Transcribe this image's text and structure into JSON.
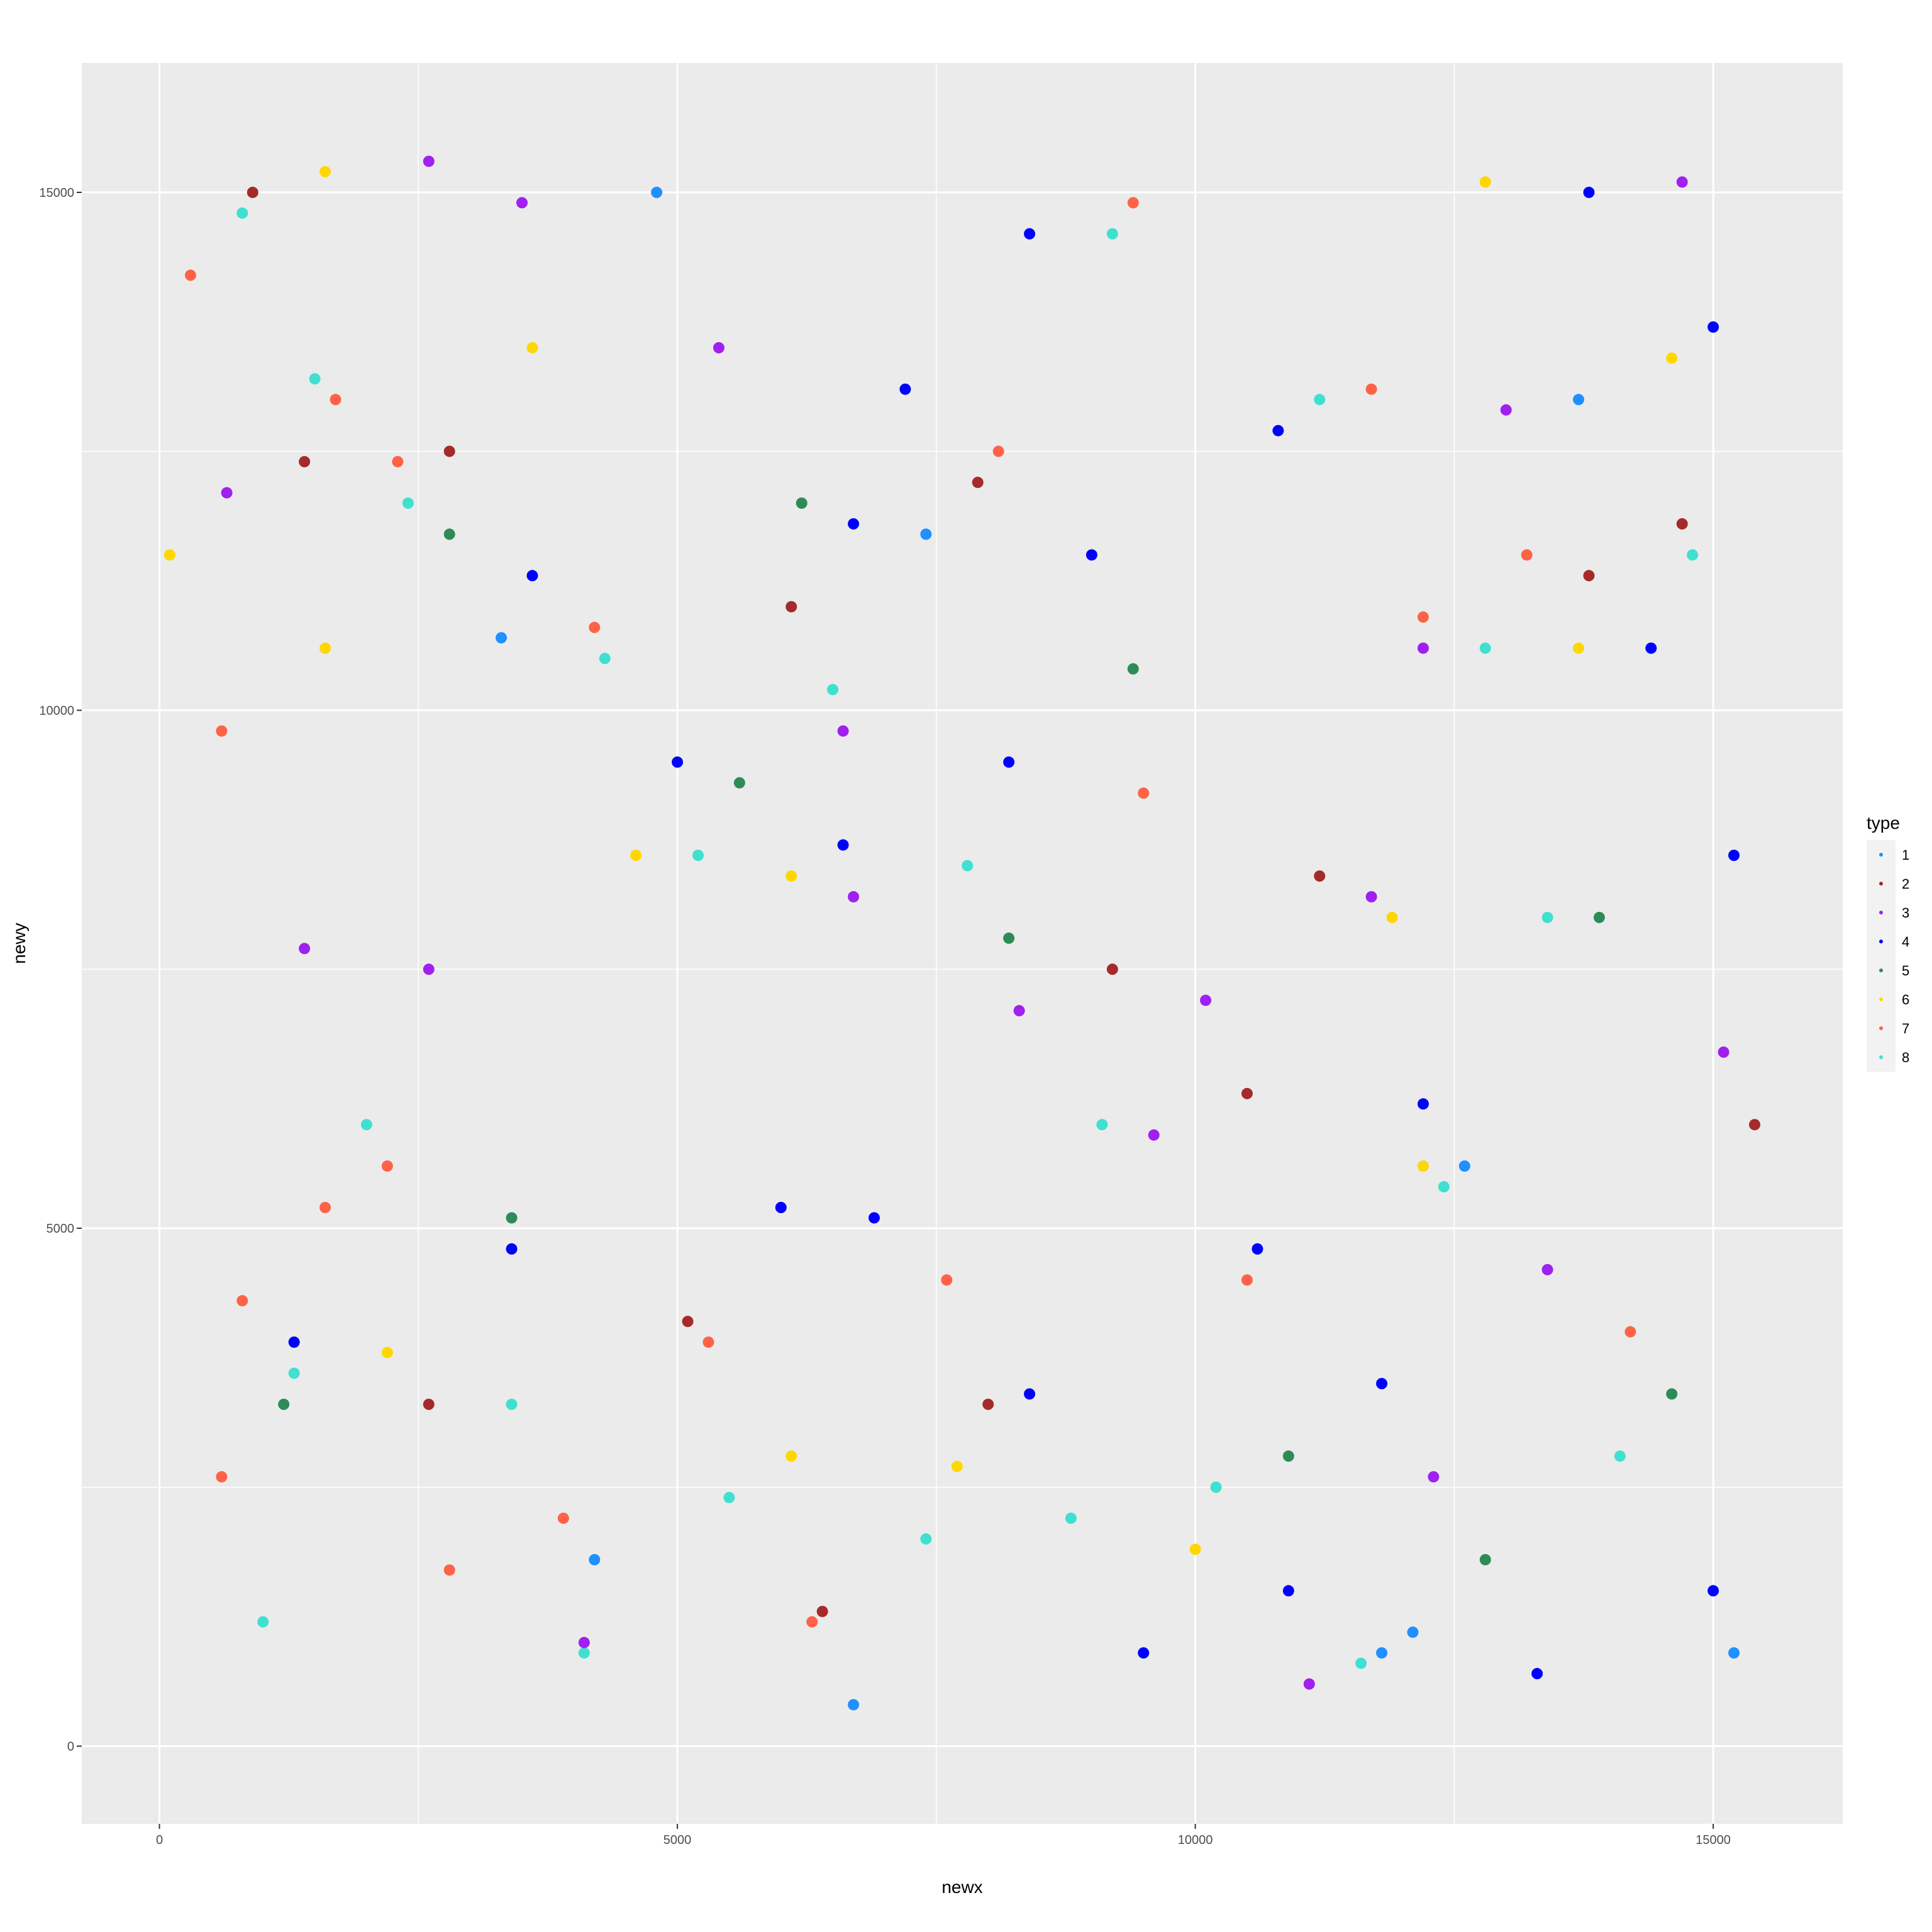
{
  "chart_data": {
    "type": "scatter",
    "xlabel": "newx",
    "ylabel": "newy",
    "xlim": [
      -750,
      16250
    ],
    "ylim": [
      -750,
      16250
    ],
    "x_ticks": [
      0,
      5000,
      10000,
      15000
    ],
    "x_tick_labels": [
      "0",
      "5000",
      "10000",
      "15000"
    ],
    "y_ticks": [
      0,
      5000,
      10000,
      15000
    ],
    "y_tick_labels": [
      "0",
      "5000",
      "10000",
      "15000"
    ],
    "grid": true,
    "panel_background": "#EBEBEB",
    "gridline_color": "#FFFFFF",
    "legend": {
      "title": "type",
      "position": "right",
      "entries": [
        {
          "label": "1",
          "color": "#1E90FF"
        },
        {
          "label": "2",
          "color": "#A52A2A"
        },
        {
          "label": "3",
          "color": "#A020F0"
        },
        {
          "label": "4",
          "color": "#0000FF"
        },
        {
          "label": "5",
          "color": "#2E8B57"
        },
        {
          "label": "6",
          "color": "#FFD700"
        },
        {
          "label": "7",
          "color": "#FF6347"
        },
        {
          "label": "8",
          "color": "#40E0D0"
        }
      ]
    },
    "series": [
      {
        "name": "8",
        "color": "#40E0D0",
        "points": [
          [
            800,
            14800
          ],
          [
            1500,
            13200
          ],
          [
            2400,
            12000
          ],
          [
            4300,
            10500
          ],
          [
            6500,
            10200
          ],
          [
            5200,
            8600
          ],
          [
            7800,
            8500
          ],
          [
            9200,
            14600
          ],
          [
            11200,
            13000
          ],
          [
            12800,
            10600
          ],
          [
            14800,
            11500
          ],
          [
            13400,
            8000
          ],
          [
            12400,
            5400
          ],
          [
            9100,
            6000
          ],
          [
            2000,
            6000
          ],
          [
            1300,
            3600
          ],
          [
            3400,
            3300
          ],
          [
            5500,
            2400
          ],
          [
            7400,
            2000
          ],
          [
            8800,
            2200
          ],
          [
            10200,
            2500
          ],
          [
            14100,
            2800
          ],
          [
            4100,
            900
          ],
          [
            1000,
            1200
          ],
          [
            11600,
            800
          ]
        ]
      },
      {
        "name": "7",
        "color": "#FF6347",
        "points": [
          [
            300,
            14200
          ],
          [
            600,
            9800
          ],
          [
            1700,
            13000
          ],
          [
            2300,
            12400
          ],
          [
            9400,
            14900
          ],
          [
            4200,
            10800
          ],
          [
            1600,
            5200
          ],
          [
            800,
            4300
          ],
          [
            2200,
            5600
          ],
          [
            3900,
            2200
          ],
          [
            6300,
            1200
          ],
          [
            8100,
            12500
          ],
          [
            9500,
            9200
          ],
          [
            12200,
            10900
          ],
          [
            14200,
            4000
          ],
          [
            600,
            2600
          ],
          [
            10500,
            4500
          ],
          [
            5300,
            3900
          ],
          [
            2800,
            1700
          ],
          [
            7600,
            4500
          ],
          [
            11700,
            13100
          ],
          [
            13200,
            11500
          ]
        ]
      },
      {
        "name": "4",
        "color": "#0000FF",
        "points": [
          [
            8400,
            14600
          ],
          [
            7200,
            13100
          ],
          [
            6700,
            11800
          ],
          [
            3600,
            11300
          ],
          [
            5000,
            9500
          ],
          [
            6600,
            8700
          ],
          [
            8200,
            9500
          ],
          [
            9000,
            11500
          ],
          [
            10800,
            12700
          ],
          [
            13800,
            15000
          ],
          [
            15000,
            13700
          ],
          [
            14400,
            10600
          ],
          [
            15200,
            8600
          ],
          [
            12200,
            6200
          ],
          [
            10600,
            4800
          ],
          [
            11800,
            3500
          ],
          [
            8400,
            3400
          ],
          [
            6000,
            5200
          ],
          [
            3400,
            4800
          ],
          [
            1300,
            3900
          ],
          [
            9500,
            900
          ],
          [
            15000,
            1500
          ],
          [
            13300,
            700
          ],
          [
            10900,
            1500
          ],
          [
            6900,
            5100
          ]
        ]
      },
      {
        "name": "3",
        "color": "#A020F0",
        "points": [
          [
            2600,
            15300
          ],
          [
            650,
            12100
          ],
          [
            1400,
            7700
          ],
          [
            2600,
            7500
          ],
          [
            3500,
            14900
          ],
          [
            5400,
            13500
          ],
          [
            6600,
            9800
          ],
          [
            6700,
            8200
          ],
          [
            8300,
            7100
          ],
          [
            10100,
            7200
          ],
          [
            12300,
            2600
          ],
          [
            14700,
            15100
          ],
          [
            13000,
            12900
          ],
          [
            15100,
            6700
          ],
          [
            13400,
            4600
          ],
          [
            4100,
            1000
          ],
          [
            11100,
            600
          ],
          [
            12200,
            10600
          ],
          [
            11700,
            8200
          ],
          [
            9600,
            5900
          ]
        ]
      },
      {
        "name": "1",
        "color": "#1E90FF",
        "points": [
          [
            13700,
            13000
          ],
          [
            12100,
            1100
          ],
          [
            11800,
            900
          ],
          [
            15200,
            900
          ],
          [
            7400,
            11700
          ],
          [
            6700,
            400
          ],
          [
            4200,
            1800
          ],
          [
            12600,
            5600
          ],
          [
            4800,
            15000
          ],
          [
            3300,
            10700
          ]
        ]
      },
      {
        "name": "6",
        "color": "#FFD700",
        "points": [
          [
            1600,
            15200
          ],
          [
            100,
            11500
          ],
          [
            1600,
            10600
          ],
          [
            4600,
            8600
          ],
          [
            6100,
            8400
          ],
          [
            2200,
            3800
          ],
          [
            6100,
            2800
          ],
          [
            7700,
            2700
          ],
          [
            10000,
            1900
          ],
          [
            12200,
            5600
          ],
          [
            13700,
            10600
          ],
          [
            14600,
            13400
          ],
          [
            3600,
            13500
          ],
          [
            12800,
            15100
          ],
          [
            11900,
            8000
          ]
        ]
      },
      {
        "name": "2",
        "color": "#A52A2A",
        "points": [
          [
            900,
            15000
          ],
          [
            1400,
            12400
          ],
          [
            7900,
            12200
          ],
          [
            6100,
            11000
          ],
          [
            2800,
            12500
          ],
          [
            11200,
            8400
          ],
          [
            8000,
            3300
          ],
          [
            6400,
            1300
          ],
          [
            5100,
            4100
          ],
          [
            13800,
            11300
          ],
          [
            15400,
            6000
          ],
          [
            9200,
            7500
          ],
          [
            2600,
            3300
          ],
          [
            10500,
            6300
          ],
          [
            14700,
            11800
          ]
        ]
      },
      {
        "name": "5",
        "color": "#2E8B57",
        "points": [
          [
            2800,
            11700
          ],
          [
            6200,
            12000
          ],
          [
            5600,
            9300
          ],
          [
            3400,
            5100
          ],
          [
            9400,
            10400
          ],
          [
            13900,
            8000
          ],
          [
            12800,
            1800
          ],
          [
            8200,
            7800
          ],
          [
            1200,
            3300
          ],
          [
            14600,
            3400
          ],
          [
            10900,
            2800
          ]
        ]
      }
    ]
  }
}
